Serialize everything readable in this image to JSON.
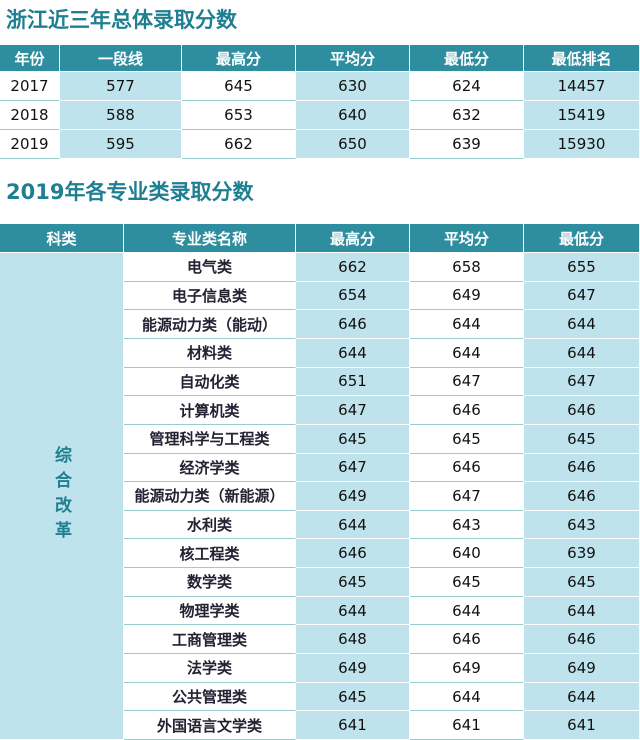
{
  "section1": {
    "title": "浙江近三年总体录取分数",
    "headers": [
      "年份",
      "一段线",
      "最高分",
      "平均分",
      "最低分",
      "最低排名"
    ],
    "rows": [
      [
        2017,
        577,
        645,
        630,
        624,
        14457
      ],
      [
        2018,
        588,
        653,
        640,
        632,
        15419
      ],
      [
        2019,
        595,
        662,
        650,
        639,
        15930
      ]
    ]
  },
  "section2": {
    "title": "2019年各专业类录取分数",
    "headers": [
      "科类",
      "专业类名称",
      "最高分",
      "平均分",
      "最低分"
    ],
    "category": "综合改革",
    "rows": [
      [
        "电气类",
        662,
        658,
        655
      ],
      [
        "电子信息类",
        654,
        649,
        647
      ],
      [
        "能源动力类（能动）",
        646,
        644,
        644
      ],
      [
        "材料类",
        644,
        644,
        644
      ],
      [
        "自动化类",
        651,
        647,
        647
      ],
      [
        "计算机类",
        647,
        646,
        646
      ],
      [
        "管理科学与工程类",
        645,
        645,
        645
      ],
      [
        "经济学类",
        647,
        646,
        646
      ],
      [
        "能源动力类（新能源）",
        649,
        647,
        646
      ],
      [
        "水利类",
        644,
        643,
        643
      ],
      [
        "核工程类",
        646,
        640,
        639
      ],
      [
        "数学类",
        645,
        645,
        645
      ],
      [
        "物理学类",
        644,
        644,
        644
      ],
      [
        "工商管理类",
        648,
        646,
        646
      ],
      [
        "法学类",
        649,
        649,
        649
      ],
      [
        "公共管理类",
        645,
        644,
        644
      ],
      [
        "外国语言文学类",
        641,
        641,
        641
      ]
    ]
  }
}
